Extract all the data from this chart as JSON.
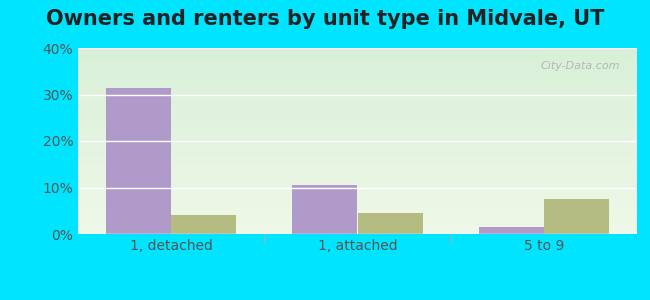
{
  "title": "Owners and renters by unit type in Midvale, UT",
  "categories": [
    "1, detached",
    "1, attached",
    "5 to 9"
  ],
  "owner_values": [
    31.5,
    10.5,
    1.5
  ],
  "renter_values": [
    4.0,
    4.5,
    7.5
  ],
  "owner_color": "#b09aca",
  "renter_color": "#b5bc82",
  "ylim": [
    0,
    40
  ],
  "yticks": [
    0,
    10,
    20,
    30,
    40
  ],
  "ytick_labels": [
    "0%",
    "10%",
    "20%",
    "30%",
    "40%"
  ],
  "background_top": "#d8f0d8",
  "background_bottom": "#f0f8e8",
  "outer_bg": "#00e5ff",
  "bar_width": 0.35,
  "title_fontsize": 15,
  "tick_fontsize": 10,
  "legend_fontsize": 10
}
